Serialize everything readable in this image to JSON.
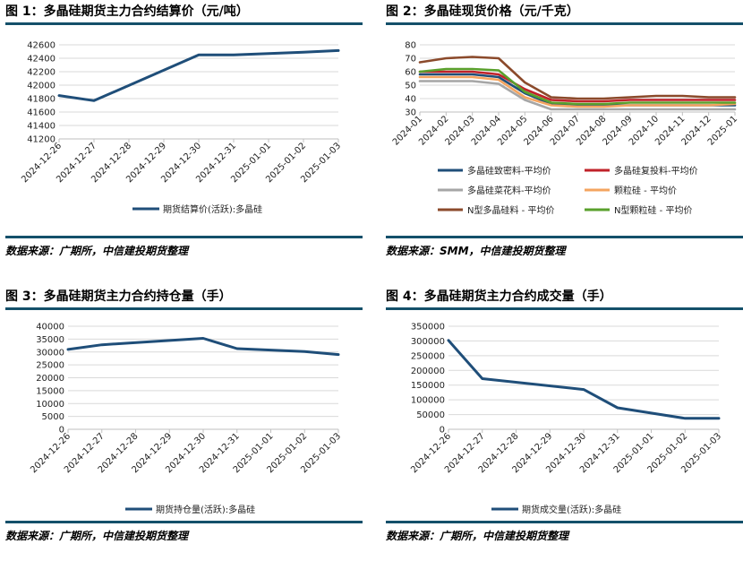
{
  "colors": {
    "accent": "#14506a",
    "line": "#1f4e79",
    "grid": "#d9d9d9"
  },
  "charts": [
    {
      "title": "图 1：多晶硅期货主力合约结算价（元/吨）",
      "source": "数据来源：广期所，中信建投期货整理",
      "chart_data": {
        "type": "line",
        "categories": [
          "2024-12-26",
          "2024-12-27",
          "2024-12-28",
          "2024-12-29",
          "2024-12-30",
          "2024-12-31",
          "2025-01-01",
          "2025-01-02",
          "2025-01-03"
        ],
        "yticks": [
          41200,
          41400,
          41600,
          41800,
          42000,
          42200,
          42400,
          42600
        ],
        "ylim": [
          41200,
          42600
        ],
        "series": [
          {
            "name": "期货结算价(活跃):多晶硅",
            "color": "#1f4e79",
            "points": [
              [
                "2024-12-26",
                41845
              ],
              [
                "2024-12-27",
                41770
              ],
              [
                "2024-12-30",
                42450
              ],
              [
                "2024-12-31",
                42450
              ],
              [
                "2025-01-02",
                42490
              ],
              [
                "2025-01-03",
                42515
              ]
            ]
          }
        ],
        "legend": "bottom"
      }
    },
    {
      "title": "图 2：多晶硅现货价格（元/千克）",
      "source": "数据来源：SMM，中信建投期货整理",
      "chart_data": {
        "type": "line",
        "categories": [
          "2024-01",
          "2024-02",
          "2024-03",
          "2024-04",
          "2024-05",
          "2024-06",
          "2024-07",
          "2024-08",
          "2024-09",
          "2024-10",
          "2024-11",
          "2024-12",
          "2025-01"
        ],
        "yticks": [
          30,
          40,
          50,
          60,
          70,
          80
        ],
        "ylim": [
          30,
          80
        ],
        "series": [
          {
            "name": "多晶硅致密料-平均价",
            "color": "#1f4e79",
            "values": [
              58,
              58,
              58,
              56,
              44,
              36,
              35,
              35,
              35,
              35,
              35,
              35,
              35
            ]
          },
          {
            "name": "多晶硅复投料-平均价",
            "color": "#c0222a",
            "values": [
              60,
              60,
              60,
              58,
              47,
              39,
              38,
              38,
              39,
              39,
              39,
              39,
              39
            ]
          },
          {
            "name": "多晶硅菜花料-平均价",
            "color": "#a6a6a6",
            "values": [
              53,
              53,
              53,
              51,
              39,
              32,
              32,
              32,
              32,
              32,
              32,
              32,
              32
            ]
          },
          {
            "name": "颗粒硅 - 平均价",
            "color": "#f4a460",
            "values": [
              56,
              56,
              56,
              54,
              41,
              35,
              34,
              34,
              35,
              35,
              35,
              35,
              36
            ]
          },
          {
            "name": "N型多晶硅料 - 平均价",
            "color": "#8b4a2b",
            "values": [
              67,
              70,
              71,
              70,
              52,
              41,
              40,
              40,
              41,
              42,
              42,
              41,
              41
            ]
          },
          {
            "name": "N型颗粒硅 - 平均价",
            "color": "#5aa02c",
            "values": [
              60,
              62,
              62,
              61,
              45,
              37,
              36,
              36,
              37,
              37,
              37,
              37,
              37
            ]
          }
        ],
        "legend": "bottom"
      }
    },
    {
      "title": "图 3：多晶硅期货主力合约持仓量（手）",
      "source": "数据来源：广期所，中信建投期货整理",
      "chart_data": {
        "type": "line",
        "categories": [
          "2024-12-26",
          "2024-12-27",
          "2024-12-28",
          "2024-12-29",
          "2024-12-30",
          "2024-12-31",
          "2025-01-01",
          "2025-01-02",
          "2025-01-03"
        ],
        "yticks": [
          0,
          5000,
          10000,
          15000,
          20000,
          25000,
          30000,
          35000,
          40000
        ],
        "ylim": [
          0,
          40000
        ],
        "series": [
          {
            "name": "期货持仓量(活跃):多晶硅",
            "color": "#1f4e79",
            "points": [
              [
                "2024-12-26",
                31000
              ],
              [
                "2024-12-27",
                32800
              ],
              [
                "2024-12-30",
                35300
              ],
              [
                "2024-12-31",
                31300
              ],
              [
                "2025-01-02",
                30200
              ],
              [
                "2025-01-03",
                29000
              ]
            ]
          }
        ],
        "legend": "bottom"
      }
    },
    {
      "title": "图 4：多晶硅期货主力合约成交量（手）",
      "source": "数据来源：广期所，中信建投期货整理",
      "chart_data": {
        "type": "line",
        "categories": [
          "2024-12-26",
          "2024-12-27",
          "2024-12-28",
          "2024-12-29",
          "2024-12-30",
          "2024-12-31",
          "2025-01-01",
          "2025-01-02",
          "2025-01-03"
        ],
        "yticks": [
          0,
          50000,
          100000,
          150000,
          200000,
          250000,
          300000,
          350000
        ],
        "ylim": [
          0,
          350000
        ],
        "series": [
          {
            "name": "期货成交量(活跃):多晶硅",
            "color": "#1f4e79",
            "points": [
              [
                "2024-12-26",
                302000
              ],
              [
                "2024-12-27",
                172000
              ],
              [
                "2024-12-30",
                135000
              ],
              [
                "2024-12-31",
                73000
              ],
              [
                "2025-01-02",
                37000
              ],
              [
                "2025-01-03",
                37000
              ]
            ]
          }
        ],
        "legend": "bottom"
      }
    }
  ]
}
